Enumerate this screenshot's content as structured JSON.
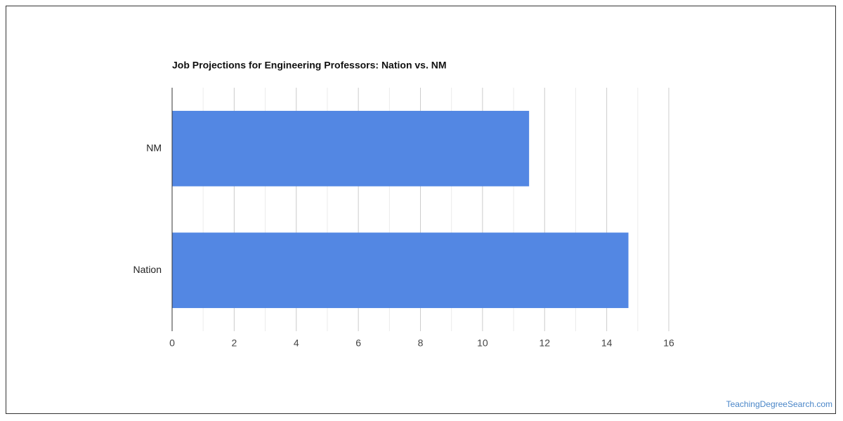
{
  "chart_data": {
    "type": "hbar",
    "title": "Job Projections for Engineering Professors: Nation vs. NM",
    "categories": [
      "NM",
      "Nation"
    ],
    "values": [
      11.5,
      14.7
    ],
    "color": "#5387e3",
    "xlim": [
      0,
      16
    ],
    "xticks": [
      0,
      2,
      4,
      6,
      8,
      10,
      12,
      14,
      16
    ],
    "minor_xticks": [
      1,
      3,
      5,
      7,
      9,
      11,
      13,
      15
    ],
    "grid": true,
    "source": "TeachingDegreeSearch.com"
  }
}
